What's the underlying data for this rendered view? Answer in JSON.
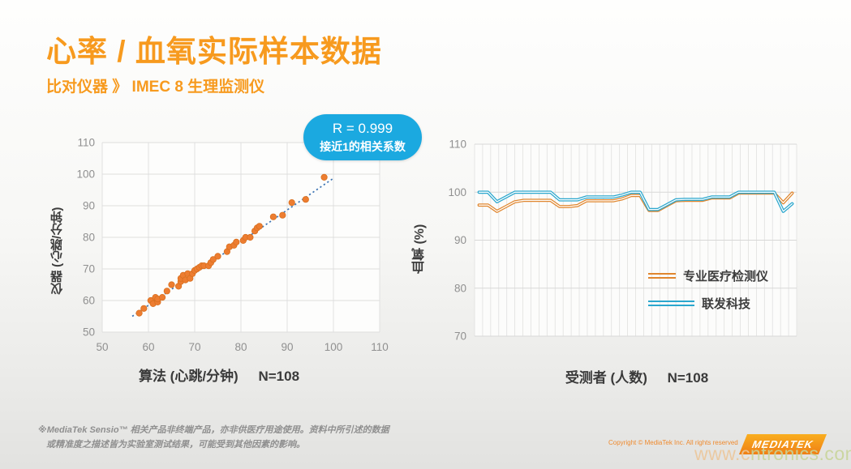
{
  "header": {
    "title": "心率 / 血氧实际样本数据",
    "subtitle": "比对仪器 》 IMEC 8 生理监测仪"
  },
  "badge": {
    "line1": "R = 0.999",
    "line2": "接近1的相关系数",
    "bg_color": "#1BA9E0"
  },
  "chart_data": [
    {
      "type": "scatter",
      "xlabel": "算法 (心跳/分钟)",
      "n_label": "N=108",
      "ylabel": "仪器 (心跳/分钟)",
      "xlim": [
        50,
        110
      ],
      "ylim": [
        50,
        110
      ],
      "xticks": [
        50,
        60,
        70,
        80,
        90,
        100,
        110
      ],
      "yticks": [
        50,
        60,
        70,
        80,
        90,
        100,
        110
      ],
      "grid": true,
      "marker_color": "#ED7D31",
      "marker_edge": "#D9701F",
      "trendline": {
        "x1": 56.5,
        "y1": 55,
        "x2": 100,
        "y2": 98.7,
        "color": "#3C74B4",
        "style": "dotted"
      },
      "points": [
        [
          58,
          56
        ],
        [
          59,
          57.5
        ],
        [
          60.5,
          60
        ],
        [
          61,
          59
        ],
        [
          61.5,
          61
        ],
        [
          62,
          59.5
        ],
        [
          62,
          60.5
        ],
        [
          63,
          61
        ],
        [
          64,
          63
        ],
        [
          65,
          65
        ],
        [
          66.5,
          64.5
        ],
        [
          67,
          66
        ],
        [
          67,
          67
        ],
        [
          67.5,
          68
        ],
        [
          68,
          66.5
        ],
        [
          68.5,
          68.5
        ],
        [
          69,
          67
        ],
        [
          69.5,
          68.5
        ],
        [
          70,
          69.5
        ],
        [
          70.5,
          70
        ],
        [
          71,
          70.5
        ],
        [
          71.5,
          71
        ],
        [
          72,
          71
        ],
        [
          73,
          71
        ],
        [
          73.5,
          72
        ],
        [
          74,
          73
        ],
        [
          75,
          74
        ],
        [
          77,
          75.5
        ],
        [
          77.5,
          77
        ],
        [
          78.5,
          77.5
        ],
        [
          79,
          78.5
        ],
        [
          80.5,
          79
        ],
        [
          81,
          80
        ],
        [
          82,
          80
        ],
        [
          83,
          82
        ],
        [
          83.5,
          83
        ],
        [
          84,
          83.5
        ],
        [
          87,
          86.5
        ],
        [
          89,
          87
        ],
        [
          91,
          91
        ],
        [
          94,
          92
        ],
        [
          98,
          99
        ]
      ]
    },
    {
      "type": "line",
      "xlabel": "受测者 (人数)",
      "n_label": "N=108",
      "ylabel": "血氧 (%)",
      "ylim": [
        70,
        110
      ],
      "yticks": [
        70,
        80,
        90,
        100,
        110
      ],
      "grid_columns": 40,
      "legend_position": "right-middle",
      "series": [
        {
          "name": "专业医疗检测仪",
          "color": "#E0862E",
          "values": [
            97.3,
            97.3,
            96,
            97,
            98,
            98.3,
            98.3,
            98.3,
            98.3,
            97,
            97,
            97.2,
            98.2,
            98.2,
            98.2,
            98.2,
            98.6,
            99.3,
            99.3,
            96.2,
            96.2,
            97.2,
            98.2,
            98.3,
            98.3,
            98.3,
            98.8,
            98.8,
            98.8,
            99.8,
            99.8,
            99.8,
            99.8,
            99.8,
            97.8,
            99.8
          ]
        },
        {
          "name": "联发科技",
          "color": "#2BA7CE",
          "values": [
            100,
            100,
            98,
            99,
            100,
            100,
            100,
            100,
            100,
            98.4,
            98.4,
            98.4,
            99,
            99,
            99,
            99,
            99.4,
            100,
            100,
            96.4,
            96.4,
            97.4,
            98.4,
            98.5,
            98.5,
            98.5,
            99,
            99,
            99,
            100,
            100,
            100,
            100,
            100,
            96,
            97.6
          ]
        }
      ]
    }
  ],
  "footer": {
    "disclaimer_line1": "※MediaTek Sensio™ 相关产品非终端产品，亦非供医疗用途使用。资料中所引述的数据",
    "disclaimer_line2": "或精准度之描述皆为实验室测试结果，可能受到其他因素的影响。",
    "copyright": "Copyright © MediaTek Inc. All rights reserved",
    "logo_text": "MEDIATEK"
  },
  "watermark": {
    "part1": "www.c",
    "part2": "ntronics.com"
  }
}
